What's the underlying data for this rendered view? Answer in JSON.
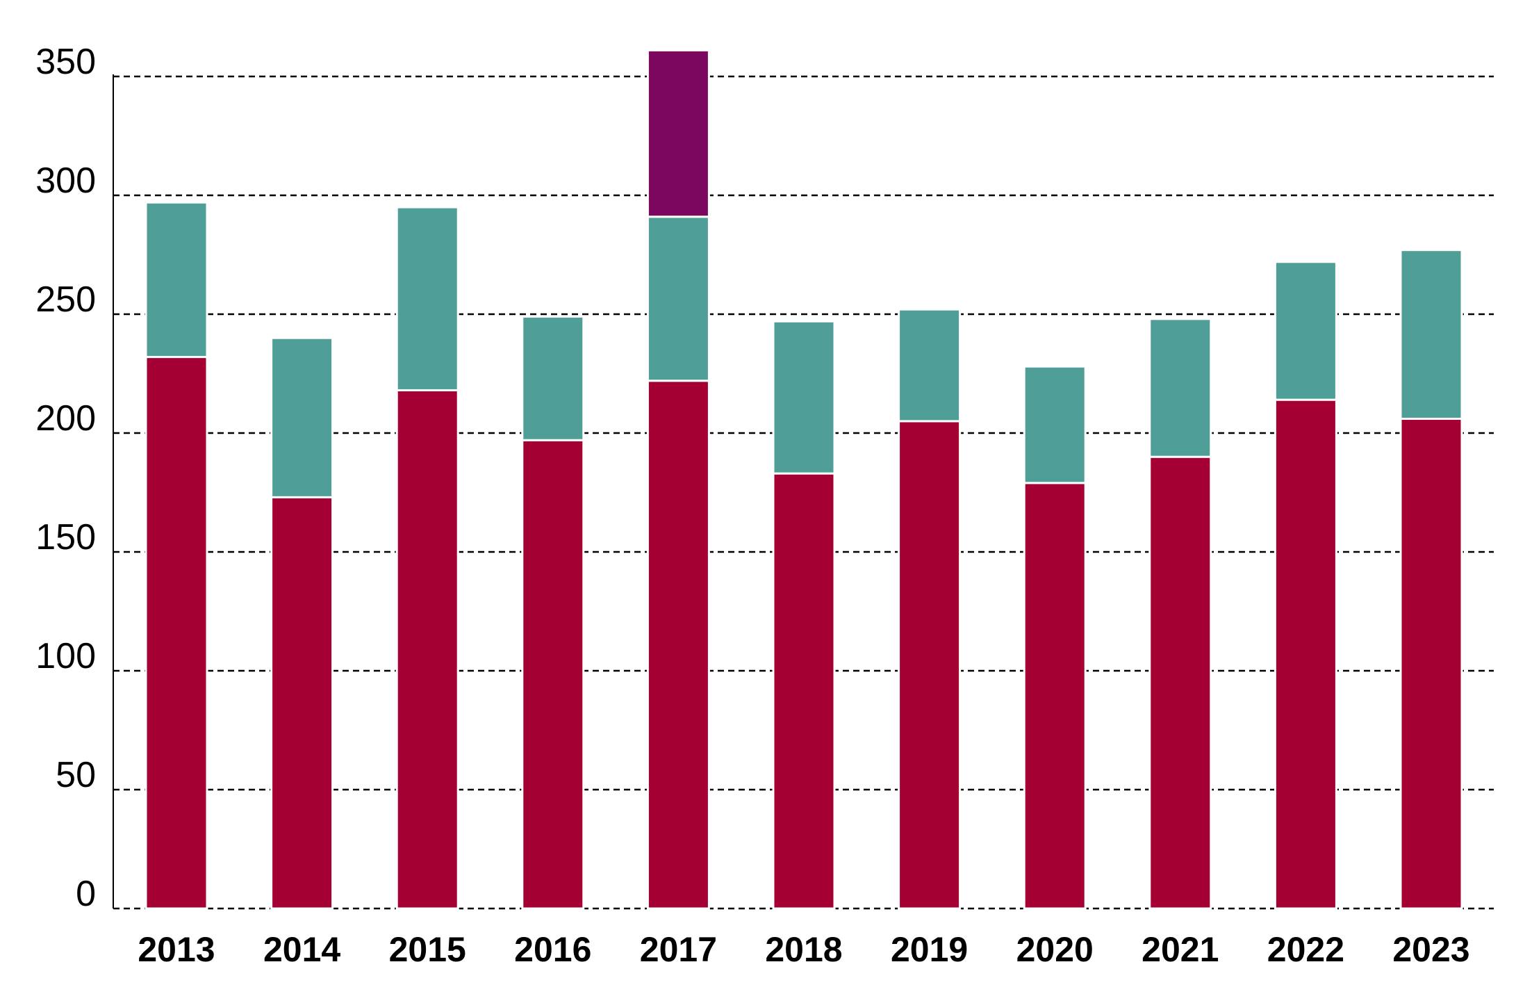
{
  "chart_data": {
    "type": "bar",
    "stacked": true,
    "title": "",
    "xlabel": "",
    "ylabel": "",
    "ylim": [
      0,
      360
    ],
    "yticks": [
      0,
      50,
      100,
      150,
      200,
      250,
      300,
      350
    ],
    "grid": "horizontal dashed",
    "legend": "none",
    "categories": [
      "2013",
      "2014",
      "2015",
      "2016",
      "2017",
      "2018",
      "2019",
      "2020",
      "2021",
      "2022",
      "2023"
    ],
    "series": [
      {
        "color": "#a50034",
        "values": [
          232,
          173,
          218,
          197,
          222,
          183,
          205,
          179,
          190,
          214,
          206
        ]
      },
      {
        "color": "#4f9e98",
        "values": [
          65,
          67,
          77,
          52,
          69,
          64,
          47,
          49,
          58,
          58,
          71
        ]
      },
      {
        "color": "#7b075f",
        "values": [
          0,
          0,
          0,
          0,
          70,
          0,
          0,
          0,
          0,
          0,
          0
        ]
      }
    ]
  }
}
